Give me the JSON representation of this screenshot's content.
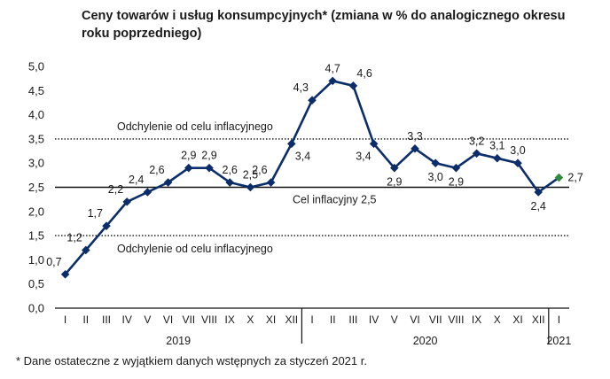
{
  "chart_data": {
    "type": "line",
    "title": "Ceny towarów i usług konsumpcyjnych* (zmiana w % do analogicznego okresu roku poprzedniego)",
    "footnote": "* Dane ostateczne z wyjątkiem danych wstępnych za styczeń 2021 r.",
    "categories": [
      "I",
      "II",
      "III",
      "IV",
      "V",
      "VI",
      "VII",
      "VIII",
      "IX",
      "X",
      "XI",
      "XII",
      "I",
      "II",
      "III",
      "IV",
      "V",
      "VI",
      "VII",
      "VIII",
      "IX",
      "X",
      "XI",
      "XII",
      "I"
    ],
    "years": [
      {
        "label": "2019",
        "from": 0,
        "to": 11
      },
      {
        "label": "2020",
        "from": 12,
        "to": 23
      },
      {
        "label": "2021",
        "from": 24,
        "to": 24
      }
    ],
    "series": [
      {
        "values": [
          0.7,
          1.2,
          1.7,
          2.2,
          2.4,
          2.6,
          2.9,
          2.9,
          2.6,
          2.5,
          2.6,
          3.4,
          4.3,
          4.7,
          4.6,
          3.4,
          2.9,
          3.3,
          3.0,
          2.9,
          3.2,
          3.1,
          3.0,
          2.4,
          2.7
        ],
        "labels": [
          "0,7",
          "1,2",
          "1,7",
          "2,2",
          "2,4",
          "2,6",
          "2,9",
          "2,9",
          "2,6",
          "2,5",
          "2,6",
          "3,4",
          "4,3",
          "4,7",
          "4,6",
          "3,4",
          "2,9",
          "3,3",
          "3,0",
          "2,9",
          "3,2",
          "3,1",
          "3,0",
          "2,4",
          "2,7"
        ],
        "color": "#0b2e6b",
        "preliminary_color": "#2e8b3e"
      }
    ],
    "yticks": [
      "0,0",
      "0,5",
      "1,0",
      "1,5",
      "2,0",
      "2,5",
      "3,0",
      "3,5",
      "4,0",
      "4,5",
      "5,0"
    ],
    "ylim": [
      0,
      5
    ],
    "reference_lines": [
      {
        "value": 2.5,
        "style": "solid",
        "label": "Cel inflacyjny 2,5"
      },
      {
        "value": 3.5,
        "style": "dotted",
        "label": "Odchylenie od celu inflacyjnego"
      },
      {
        "value": 1.5,
        "style": "dotted",
        "label": "Odchylenie od celu inflacyjnego"
      }
    ],
    "grid": false
  }
}
